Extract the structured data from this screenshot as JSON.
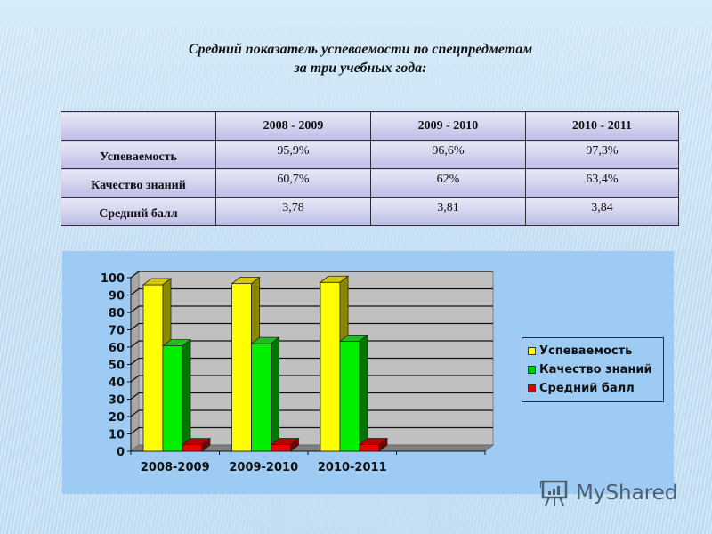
{
  "slide": {
    "title_line1": "Средний показатель успеваемости по спецпредметам",
    "title_line2": "за три учебных года:"
  },
  "table": {
    "columns": [
      "",
      "2008 - 2009",
      "2009 - 2010",
      "2010 - 2011"
    ],
    "rows": [
      {
        "label": "Успеваемость",
        "values": [
          "95,9%",
          "96,6%",
          "97,3%"
        ]
      },
      {
        "label": "Качество знаний",
        "values": [
          "60,7%",
          "62%",
          "63,4%"
        ]
      },
      {
        "label": "Средний балл",
        "values": [
          "3,78",
          "3,81",
          "3,84"
        ]
      }
    ]
  },
  "chart_data": {
    "type": "bar",
    "style": "3d-clustered-column",
    "title": "",
    "xlabel": "",
    "ylabel": "",
    "categories": [
      "2008-2009",
      "2009-2010",
      "2010-2011"
    ],
    "series": [
      {
        "name": "Успеваемость",
        "values": [
          95.9,
          96.6,
          97.3
        ],
        "color": "#ffff00"
      },
      {
        "name": "Качество знаний",
        "values": [
          60.7,
          62,
          63.4
        ],
        "color": "#00ee00"
      },
      {
        "name": "Средний балл",
        "values": [
          3.78,
          3.81,
          3.84
        ],
        "color": "#ee0000"
      }
    ],
    "ylim": [
      0,
      100
    ],
    "yticks": [
      "0",
      "10",
      "20",
      "30",
      "40",
      "50",
      "60",
      "70",
      "80",
      "90",
      "100"
    ],
    "grid": true,
    "legend_position": "right",
    "plot_background": "#c0c0c0",
    "panel_background": "#9ecbf4"
  },
  "legend": {
    "items": [
      {
        "label": "Успеваемость",
        "color": "#ffff00"
      },
      {
        "label": "Качество знаний",
        "color": "#00cc00"
      },
      {
        "label": "Средний балл",
        "color": "#dd0000"
      }
    ]
  },
  "watermark": {
    "text": "MyShared"
  }
}
